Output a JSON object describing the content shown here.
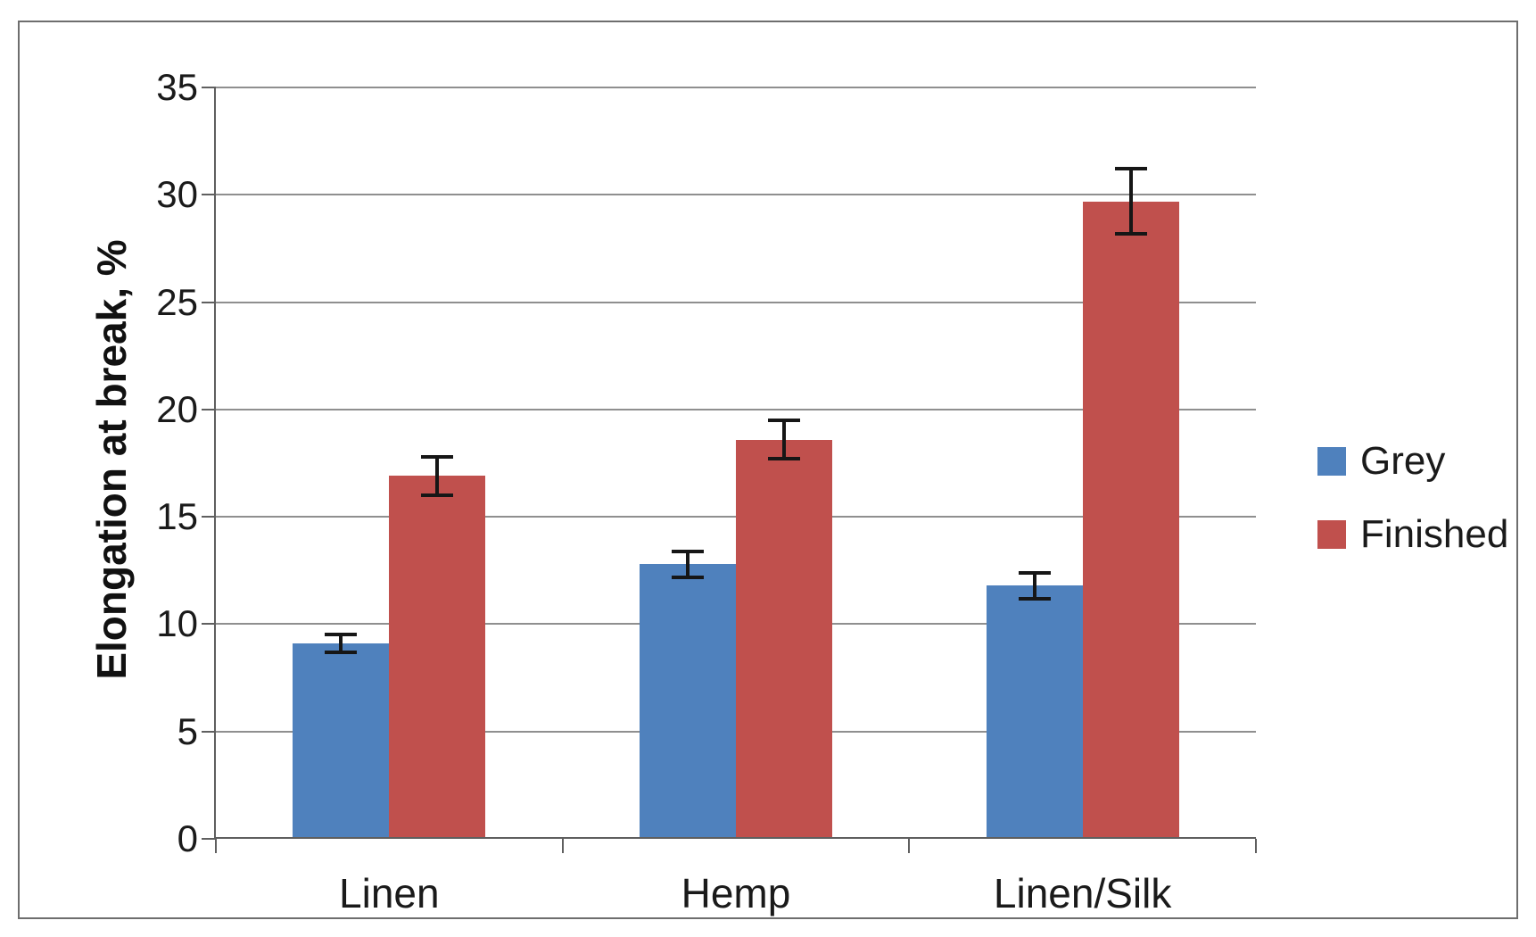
{
  "chart_data": {
    "type": "bar",
    "title": "",
    "xlabel": "",
    "ylabel": "Elongation at break, %",
    "categories": [
      "Linen",
      "Hemp",
      "Linen/Silk"
    ],
    "series": [
      {
        "name": "Grey",
        "color": "#4F81BD",
        "values": [
          9.1,
          12.8,
          11.8
        ],
        "errors": [
          0.4,
          0.6,
          0.6
        ]
      },
      {
        "name": "Finished",
        "color": "#C0504D",
        "values": [
          16.9,
          18.6,
          29.7
        ],
        "errors": [
          0.9,
          0.9,
          1.5
        ]
      }
    ],
    "error_bars": true,
    "error_bar_color": "#161616",
    "ylim": [
      0,
      35
    ],
    "ytick_step": 5,
    "yticks": [
      0,
      5,
      10,
      15,
      20,
      25,
      30,
      35
    ],
    "grid": true,
    "gridline_color": "#8f8f8f",
    "axis_color": "#5f5f5f",
    "legend_position": "right",
    "legend_entries": [
      "Grey",
      "Finished"
    ],
    "background_color": "#ffffff"
  }
}
